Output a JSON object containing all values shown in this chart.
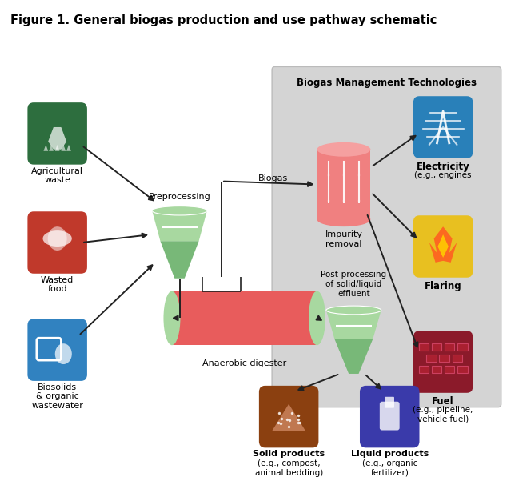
{
  "title": "Figure 1. General biogas production and use pathway schematic",
  "title_fontsize": 10.5,
  "bg_color": "#ffffff",
  "ag_color": "#2d6e3e",
  "food_color": "#c0392b",
  "bio_color": "#3182c0",
  "green_light": "#a8d8a0",
  "green_dark": "#78b878",
  "red_light": "#f08080",
  "red_mid": "#e85c5c",
  "gray_box": "#d4d4d4",
  "elec_color": "#2980b9",
  "flare_color": "#e8c020",
  "fuel_color": "#8b1a2a",
  "solid_color": "#8b4010",
  "liquid_color": "#3a3aaa",
  "arrow_color": "#222222",
  "biogas_label": "Biogas",
  "preprocess_label": "Preprocessing",
  "anaerobic_label": "Anaerobic digester",
  "impurity_label": "Impurity\nremoval",
  "postprocess_label": "Post-processing\nof solid/liquid\neffluent",
  "mgmt_label": "Biogas Management Technologies",
  "ag_label": "Agricultural\nwaste",
  "food_label": "Wasted\nfood",
  "bio_label": "Biosolids\n& organic\nwastewater",
  "elec_label": "Electricity",
  "elec_sub": "(e.g., engines",
  "flare_label": "Flaring",
  "fuel_label": "Fuel",
  "fuel_sub": "(e.g., pipeline,\nvehicle fuel)",
  "solid_label": "Solid products",
  "solid_sub": "(e.g., compost,\nanimal bedding)",
  "liquid_label": "Liquid products",
  "liquid_sub": "(e.g., organic\nfertilizer)"
}
